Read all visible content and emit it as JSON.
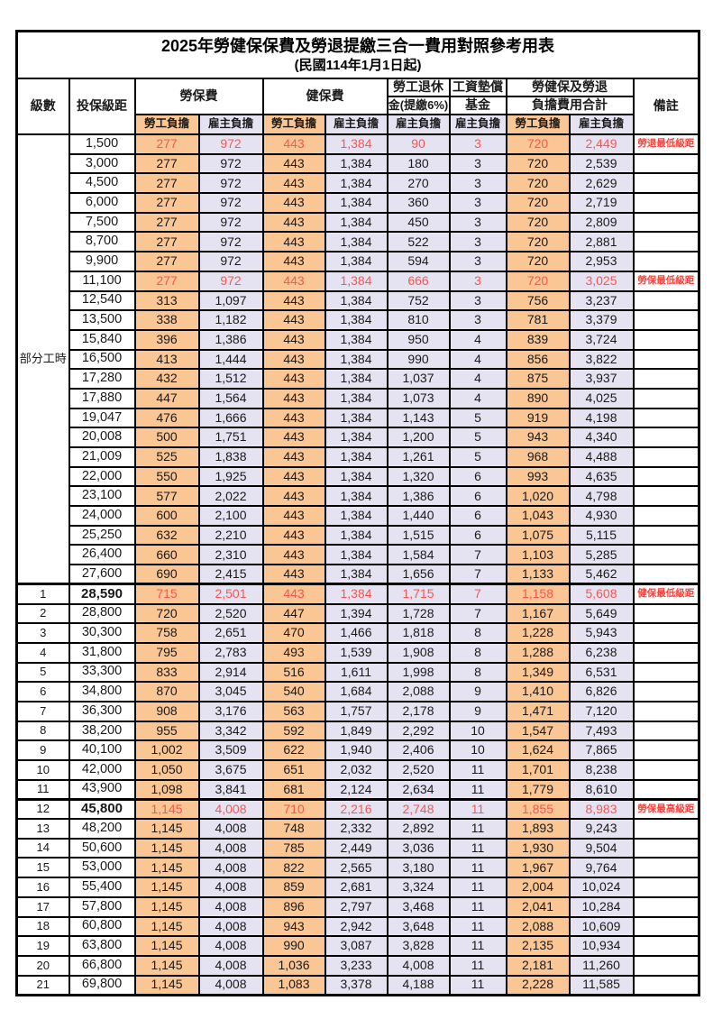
{
  "title": "2025年勞健保保費及勞退提繳三合一費用對照參考用表",
  "subtitle": "(民國114年1月1日起)",
  "part_time_label": "部分工時",
  "part_time_rowspan": 23,
  "colors": {
    "employee_fill": "#FAC694",
    "employer_fill": "#E5E3F2",
    "highlight_red": "#FA5652",
    "remark_red": "#FA423C",
    "grid": "#000000"
  },
  "headers": {
    "level": "級數",
    "salary": "投保級距",
    "labor_fee": "勞保費",
    "health_fee": "健保費",
    "pension_line1": "勞工退休",
    "pension_line2": "金(提繳6%)",
    "fund_line1": "工資墊償",
    "fund_line2": "基金",
    "total_line1": "勞健保及勞退",
    "total_line2": "負擔費用合計",
    "remark": "備註",
    "employee": "勞工負擔",
    "employer": "雇主負擔"
  },
  "rows": [
    {
      "level": "",
      "salary": "1,500",
      "labor_emp": "277",
      "labor_er": "972",
      "health_emp": "443",
      "health_er": "1,384",
      "pension_er": "90",
      "fund_er": "3",
      "total_emp": "720",
      "total_er": "2,449",
      "remark": "勞退最低級距",
      "red": true,
      "thick": false,
      "bold": false
    },
    {
      "level": "",
      "salary": "3,000",
      "labor_emp": "277",
      "labor_er": "972",
      "health_emp": "443",
      "health_er": "1,384",
      "pension_er": "180",
      "fund_er": "3",
      "total_emp": "720",
      "total_er": "2,539",
      "remark": "",
      "red": false,
      "thick": false,
      "bold": false
    },
    {
      "level": "",
      "salary": "4,500",
      "labor_emp": "277",
      "labor_er": "972",
      "health_emp": "443",
      "health_er": "1,384",
      "pension_er": "270",
      "fund_er": "3",
      "total_emp": "720",
      "total_er": "2,629",
      "remark": "",
      "red": false,
      "thick": false,
      "bold": false
    },
    {
      "level": "",
      "salary": "6,000",
      "labor_emp": "277",
      "labor_er": "972",
      "health_emp": "443",
      "health_er": "1,384",
      "pension_er": "360",
      "fund_er": "3",
      "total_emp": "720",
      "total_er": "2,719",
      "remark": "",
      "red": false,
      "thick": false,
      "bold": false
    },
    {
      "level": "",
      "salary": "7,500",
      "labor_emp": "277",
      "labor_er": "972",
      "health_emp": "443",
      "health_er": "1,384",
      "pension_er": "450",
      "fund_er": "3",
      "total_emp": "720",
      "total_er": "2,809",
      "remark": "",
      "red": false,
      "thick": false,
      "bold": false
    },
    {
      "level": "",
      "salary": "8,700",
      "labor_emp": "277",
      "labor_er": "972",
      "health_emp": "443",
      "health_er": "1,384",
      "pension_er": "522",
      "fund_er": "3",
      "total_emp": "720",
      "total_er": "2,881",
      "remark": "",
      "red": false,
      "thick": false,
      "bold": false
    },
    {
      "level": "",
      "salary": "9,900",
      "labor_emp": "277",
      "labor_er": "972",
      "health_emp": "443",
      "health_er": "1,384",
      "pension_er": "594",
      "fund_er": "3",
      "total_emp": "720",
      "total_er": "2,953",
      "remark": "",
      "red": false,
      "thick": false,
      "bold": false
    },
    {
      "level": "",
      "salary": "11,100",
      "labor_emp": "277",
      "labor_er": "972",
      "health_emp": "443",
      "health_er": "1,384",
      "pension_er": "666",
      "fund_er": "3",
      "total_emp": "720",
      "total_er": "3,025",
      "remark": "勞保最低級距",
      "red": true,
      "thick": false,
      "bold": false
    },
    {
      "level": "",
      "salary": "12,540",
      "labor_emp": "313",
      "labor_er": "1,097",
      "health_emp": "443",
      "health_er": "1,384",
      "pension_er": "752",
      "fund_er": "3",
      "total_emp": "756",
      "total_er": "3,237",
      "remark": "",
      "red": false,
      "thick": false,
      "bold": false
    },
    {
      "level": "",
      "salary": "13,500",
      "labor_emp": "338",
      "labor_er": "1,182",
      "health_emp": "443",
      "health_er": "1,384",
      "pension_er": "810",
      "fund_er": "3",
      "total_emp": "781",
      "total_er": "3,379",
      "remark": "",
      "red": false,
      "thick": false,
      "bold": false
    },
    {
      "level": "",
      "salary": "15,840",
      "labor_emp": "396",
      "labor_er": "1,386",
      "health_emp": "443",
      "health_er": "1,384",
      "pension_er": "950",
      "fund_er": "4",
      "total_emp": "839",
      "total_er": "3,724",
      "remark": "",
      "red": false,
      "thick": false,
      "bold": false
    },
    {
      "level": "",
      "salary": "16,500",
      "labor_emp": "413",
      "labor_er": "1,444",
      "health_emp": "443",
      "health_er": "1,384",
      "pension_er": "990",
      "fund_er": "4",
      "total_emp": "856",
      "total_er": "3,822",
      "remark": "",
      "red": false,
      "thick": false,
      "bold": false
    },
    {
      "level": "",
      "salary": "17,280",
      "labor_emp": "432",
      "labor_er": "1,512",
      "health_emp": "443",
      "health_er": "1,384",
      "pension_er": "1,037",
      "fund_er": "4",
      "total_emp": "875",
      "total_er": "3,937",
      "remark": "",
      "red": false,
      "thick": false,
      "bold": false
    },
    {
      "level": "",
      "salary": "17,880",
      "labor_emp": "447",
      "labor_er": "1,564",
      "health_emp": "443",
      "health_er": "1,384",
      "pension_er": "1,073",
      "fund_er": "4",
      "total_emp": "890",
      "total_er": "4,025",
      "remark": "",
      "red": false,
      "thick": false,
      "bold": false
    },
    {
      "level": "",
      "salary": "19,047",
      "labor_emp": "476",
      "labor_er": "1,666",
      "health_emp": "443",
      "health_er": "1,384",
      "pension_er": "1,143",
      "fund_er": "5",
      "total_emp": "919",
      "total_er": "4,198",
      "remark": "",
      "red": false,
      "thick": false,
      "bold": false
    },
    {
      "level": "",
      "salary": "20,008",
      "labor_emp": "500",
      "labor_er": "1,751",
      "health_emp": "443",
      "health_er": "1,384",
      "pension_er": "1,200",
      "fund_er": "5",
      "total_emp": "943",
      "total_er": "4,340",
      "remark": "",
      "red": false,
      "thick": false,
      "bold": false
    },
    {
      "level": "",
      "salary": "21,009",
      "labor_emp": "525",
      "labor_er": "1,838",
      "health_emp": "443",
      "health_er": "1,384",
      "pension_er": "1,261",
      "fund_er": "5",
      "total_emp": "968",
      "total_er": "4,488",
      "remark": "",
      "red": false,
      "thick": false,
      "bold": false
    },
    {
      "level": "",
      "salary": "22,000",
      "labor_emp": "550",
      "labor_er": "1,925",
      "health_emp": "443",
      "health_er": "1,384",
      "pension_er": "1,320",
      "fund_er": "6",
      "total_emp": "993",
      "total_er": "4,635",
      "remark": "",
      "red": false,
      "thick": false,
      "bold": false
    },
    {
      "level": "",
      "salary": "23,100",
      "labor_emp": "577",
      "labor_er": "2,022",
      "health_emp": "443",
      "health_er": "1,384",
      "pension_er": "1,386",
      "fund_er": "6",
      "total_emp": "1,020",
      "total_er": "4,798",
      "remark": "",
      "red": false,
      "thick": false,
      "bold": false
    },
    {
      "level": "",
      "salary": "24,000",
      "labor_emp": "600",
      "labor_er": "2,100",
      "health_emp": "443",
      "health_er": "1,384",
      "pension_er": "1,440",
      "fund_er": "6",
      "total_emp": "1,043",
      "total_er": "4,930",
      "remark": "",
      "red": false,
      "thick": false,
      "bold": false
    },
    {
      "level": "",
      "salary": "25,250",
      "labor_emp": "632",
      "labor_er": "2,210",
      "health_emp": "443",
      "health_er": "1,384",
      "pension_er": "1,515",
      "fund_er": "6",
      "total_emp": "1,075",
      "total_er": "5,115",
      "remark": "",
      "red": false,
      "thick": false,
      "bold": false
    },
    {
      "level": "",
      "salary": "26,400",
      "labor_emp": "660",
      "labor_er": "2,310",
      "health_emp": "443",
      "health_er": "1,384",
      "pension_er": "1,584",
      "fund_er": "7",
      "total_emp": "1,103",
      "total_er": "5,285",
      "remark": "",
      "red": false,
      "thick": false,
      "bold": false
    },
    {
      "level": "",
      "salary": "27,600",
      "labor_emp": "690",
      "labor_er": "2,415",
      "health_emp": "443",
      "health_er": "1,384",
      "pension_er": "1,656",
      "fund_er": "7",
      "total_emp": "1,133",
      "total_er": "5,462",
      "remark": "",
      "red": false,
      "thick": false,
      "bold": false
    },
    {
      "level": "1",
      "salary": "28,590",
      "labor_emp": "715",
      "labor_er": "2,501",
      "health_emp": "443",
      "health_er": "1,384",
      "pension_er": "1,715",
      "fund_er": "7",
      "total_emp": "1,158",
      "total_er": "5,608",
      "remark": "健保最低級距",
      "red": true,
      "thick": true,
      "bold": true
    },
    {
      "level": "2",
      "salary": "28,800",
      "labor_emp": "720",
      "labor_er": "2,520",
      "health_emp": "447",
      "health_er": "1,394",
      "pension_er": "1,728",
      "fund_er": "7",
      "total_emp": "1,167",
      "total_er": "5,649",
      "remark": "",
      "red": false,
      "thick": false,
      "bold": false
    },
    {
      "level": "3",
      "salary": "30,300",
      "labor_emp": "758",
      "labor_er": "2,651",
      "health_emp": "470",
      "health_er": "1,466",
      "pension_er": "1,818",
      "fund_er": "8",
      "total_emp": "1,228",
      "total_er": "5,943",
      "remark": "",
      "red": false,
      "thick": false,
      "bold": false
    },
    {
      "level": "4",
      "salary": "31,800",
      "labor_emp": "795",
      "labor_er": "2,783",
      "health_emp": "493",
      "health_er": "1,539",
      "pension_er": "1,908",
      "fund_er": "8",
      "total_emp": "1,288",
      "total_er": "6,238",
      "remark": "",
      "red": false,
      "thick": false,
      "bold": false
    },
    {
      "level": "5",
      "salary": "33,300",
      "labor_emp": "833",
      "labor_er": "2,914",
      "health_emp": "516",
      "health_er": "1,611",
      "pension_er": "1,998",
      "fund_er": "8",
      "total_emp": "1,349",
      "total_er": "6,531",
      "remark": "",
      "red": false,
      "thick": false,
      "bold": false
    },
    {
      "level": "6",
      "salary": "34,800",
      "labor_emp": "870",
      "labor_er": "3,045",
      "health_emp": "540",
      "health_er": "1,684",
      "pension_er": "2,088",
      "fund_er": "9",
      "total_emp": "1,410",
      "total_er": "6,826",
      "remark": "",
      "red": false,
      "thick": false,
      "bold": false
    },
    {
      "level": "7",
      "salary": "36,300",
      "labor_emp": "908",
      "labor_er": "3,176",
      "health_emp": "563",
      "health_er": "1,757",
      "pension_er": "2,178",
      "fund_er": "9",
      "total_emp": "1,471",
      "total_er": "7,120",
      "remark": "",
      "red": false,
      "thick": false,
      "bold": false
    },
    {
      "level": "8",
      "salary": "38,200",
      "labor_emp": "955",
      "labor_er": "3,342",
      "health_emp": "592",
      "health_er": "1,849",
      "pension_er": "2,292",
      "fund_er": "10",
      "total_emp": "1,547",
      "total_er": "7,493",
      "remark": "",
      "red": false,
      "thick": false,
      "bold": false
    },
    {
      "level": "9",
      "salary": "40,100",
      "labor_emp": "1,002",
      "labor_er": "3,509",
      "health_emp": "622",
      "health_er": "1,940",
      "pension_er": "2,406",
      "fund_er": "10",
      "total_emp": "1,624",
      "total_er": "7,865",
      "remark": "",
      "red": false,
      "thick": false,
      "bold": false
    },
    {
      "level": "10",
      "salary": "42,000",
      "labor_emp": "1,050",
      "labor_er": "3,675",
      "health_emp": "651",
      "health_er": "2,032",
      "pension_er": "2,520",
      "fund_er": "11",
      "total_emp": "1,701",
      "total_er": "8,238",
      "remark": "",
      "red": false,
      "thick": false,
      "bold": false
    },
    {
      "level": "11",
      "salary": "43,900",
      "labor_emp": "1,098",
      "labor_er": "3,841",
      "health_emp": "681",
      "health_er": "2,124",
      "pension_er": "2,634",
      "fund_er": "11",
      "total_emp": "1,779",
      "total_er": "8,610",
      "remark": "",
      "red": false,
      "thick": false,
      "bold": false
    },
    {
      "level": "12",
      "salary": "45,800",
      "labor_emp": "1,145",
      "labor_er": "4,008",
      "health_emp": "710",
      "health_er": "2,216",
      "pension_er": "2,748",
      "fund_er": "11",
      "total_emp": "1,855",
      "total_er": "8,983",
      "remark": "勞保最高級距",
      "red": true,
      "thick": true,
      "bold": true
    },
    {
      "level": "13",
      "salary": "48,200",
      "labor_emp": "1,145",
      "labor_er": "4,008",
      "health_emp": "748",
      "health_er": "2,332",
      "pension_er": "2,892",
      "fund_er": "11",
      "total_emp": "1,893",
      "total_er": "9,243",
      "remark": "",
      "red": false,
      "thick": false,
      "bold": false
    },
    {
      "level": "14",
      "salary": "50,600",
      "labor_emp": "1,145",
      "labor_er": "4,008",
      "health_emp": "785",
      "health_er": "2,449",
      "pension_er": "3,036",
      "fund_er": "11",
      "total_emp": "1,930",
      "total_er": "9,504",
      "remark": "",
      "red": false,
      "thick": false,
      "bold": false
    },
    {
      "level": "15",
      "salary": "53,000",
      "labor_emp": "1,145",
      "labor_er": "4,008",
      "health_emp": "822",
      "health_er": "2,565",
      "pension_er": "3,180",
      "fund_er": "11",
      "total_emp": "1,967",
      "total_er": "9,764",
      "remark": "",
      "red": false,
      "thick": false,
      "bold": false
    },
    {
      "level": "16",
      "salary": "55,400",
      "labor_emp": "1,145",
      "labor_er": "4,008",
      "health_emp": "859",
      "health_er": "2,681",
      "pension_er": "3,324",
      "fund_er": "11",
      "total_emp": "2,004",
      "total_er": "10,024",
      "remark": "",
      "red": false,
      "thick": false,
      "bold": false
    },
    {
      "level": "17",
      "salary": "57,800",
      "labor_emp": "1,145",
      "labor_er": "4,008",
      "health_emp": "896",
      "health_er": "2,797",
      "pension_er": "3,468",
      "fund_er": "11",
      "total_emp": "2,041",
      "total_er": "10,284",
      "remark": "",
      "red": false,
      "thick": false,
      "bold": false
    },
    {
      "level": "18",
      "salary": "60,800",
      "labor_emp": "1,145",
      "labor_er": "4,008",
      "health_emp": "943",
      "health_er": "2,942",
      "pension_er": "3,648",
      "fund_er": "11",
      "total_emp": "2,088",
      "total_er": "10,609",
      "remark": "",
      "red": false,
      "thick": false,
      "bold": false
    },
    {
      "level": "19",
      "salary": "63,800",
      "labor_emp": "1,145",
      "labor_er": "4,008",
      "health_emp": "990",
      "health_er": "3,087",
      "pension_er": "3,828",
      "fund_er": "11",
      "total_emp": "2,135",
      "total_er": "10,934",
      "remark": "",
      "red": false,
      "thick": false,
      "bold": false
    },
    {
      "level": "20",
      "salary": "66,800",
      "labor_emp": "1,145",
      "labor_er": "4,008",
      "health_emp": "1,036",
      "health_er": "3,233",
      "pension_er": "4,008",
      "fund_er": "11",
      "total_emp": "2,181",
      "total_er": "11,260",
      "remark": "",
      "red": false,
      "thick": false,
      "bold": false
    },
    {
      "level": "21",
      "salary": "69,800",
      "labor_emp": "1,145",
      "labor_er": "4,008",
      "health_emp": "1,083",
      "health_er": "3,378",
      "pension_er": "4,188",
      "fund_er": "11",
      "total_emp": "2,228",
      "total_er": "11,585",
      "remark": "",
      "red": false,
      "thick": false,
      "bold": false
    }
  ]
}
